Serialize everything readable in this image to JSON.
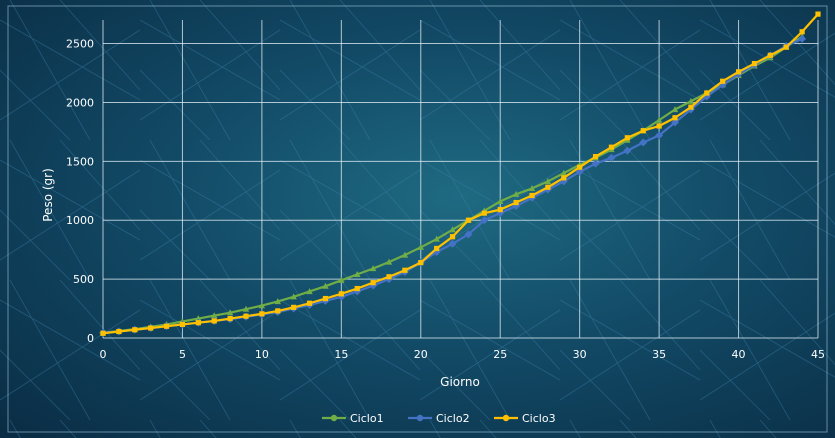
{
  "chart_data": {
    "type": "line",
    "title": "",
    "xlabel": "Giorno",
    "ylabel": "Peso (gr)",
    "xlim": [
      0,
      45
    ],
    "ylim": [
      0,
      2700
    ],
    "xticks": [
      0,
      5,
      10,
      15,
      20,
      25,
      30,
      35,
      40,
      45
    ],
    "yticks": [
      0,
      500,
      1000,
      1500,
      2000,
      2500
    ],
    "grid": true,
    "legend_position": "bottom",
    "series": [
      {
        "name": "Ciclo1",
        "color": "#70ad47",
        "x": [
          0,
          1,
          2,
          3,
          4,
          5,
          6,
          7,
          8,
          9,
          10,
          11,
          12,
          13,
          14,
          15,
          16,
          17,
          18,
          19,
          20,
          21,
          22,
          23,
          24,
          25,
          26,
          27,
          28,
          29,
          30,
          31,
          32,
          33,
          34,
          35,
          36,
          37,
          38,
          39,
          40,
          41,
          42,
          43,
          44
        ],
        "y": [
          45,
          60,
          75,
          95,
          115,
          140,
          165,
          190,
          215,
          245,
          275,
          310,
          350,
          395,
          440,
          490,
          540,
          590,
          645,
          705,
          770,
          840,
          920,
          1000,
          1080,
          1160,
          1220,
          1270,
          1330,
          1400,
          1470,
          1530,
          1600,
          1680,
          1760,
          1850,
          1940,
          2010,
          2080,
          2150,
          2230,
          2310,
          2380,
          2470,
          2560
        ]
      },
      {
        "name": "Ciclo2",
        "color": "#4472c4",
        "x": [
          0,
          1,
          2,
          3,
          4,
          5,
          6,
          7,
          8,
          9,
          10,
          11,
          12,
          13,
          14,
          15,
          16,
          17,
          18,
          19,
          20,
          21,
          22,
          23,
          24,
          25,
          26,
          27,
          28,
          29,
          30,
          31,
          32,
          33,
          34,
          35,
          36,
          37,
          38,
          39,
          40,
          41,
          42,
          43,
          44
        ],
        "y": [
          45,
          55,
          70,
          85,
          100,
          115,
          130,
          145,
          160,
          180,
          200,
          220,
          250,
          280,
          315,
          350,
          395,
          445,
          500,
          560,
          640,
          730,
          800,
          880,
          1000,
          1060,
          1120,
          1190,
          1260,
          1330,
          1410,
          1480,
          1530,
          1590,
          1660,
          1720,
          1830,
          1940,
          2050,
          2150,
          2240,
          2320,
          2400,
          2480,
          2540
        ]
      },
      {
        "name": "Ciclo3",
        "color": "#ffc000",
        "x": [
          0,
          1,
          2,
          3,
          4,
          5,
          6,
          7,
          8,
          9,
          10,
          11,
          12,
          13,
          14,
          15,
          16,
          17,
          18,
          19,
          20,
          21,
          22,
          23,
          24,
          25,
          26,
          27,
          28,
          29,
          30,
          31,
          32,
          33,
          34,
          35,
          36,
          37,
          38,
          39,
          40,
          41,
          42,
          43,
          44,
          45
        ],
        "y": [
          40,
          55,
          70,
          85,
          100,
          115,
          130,
          145,
          165,
          185,
          205,
          230,
          260,
          295,
          335,
          375,
          420,
          470,
          520,
          575,
          640,
          760,
          860,
          1000,
          1060,
          1090,
          1150,
          1210,
          1280,
          1360,
          1450,
          1540,
          1620,
          1700,
          1760,
          1800,
          1870,
          1960,
          2080,
          2180,
          2260,
          2330,
          2400,
          2470,
          2600,
          2750
        ]
      }
    ]
  }
}
